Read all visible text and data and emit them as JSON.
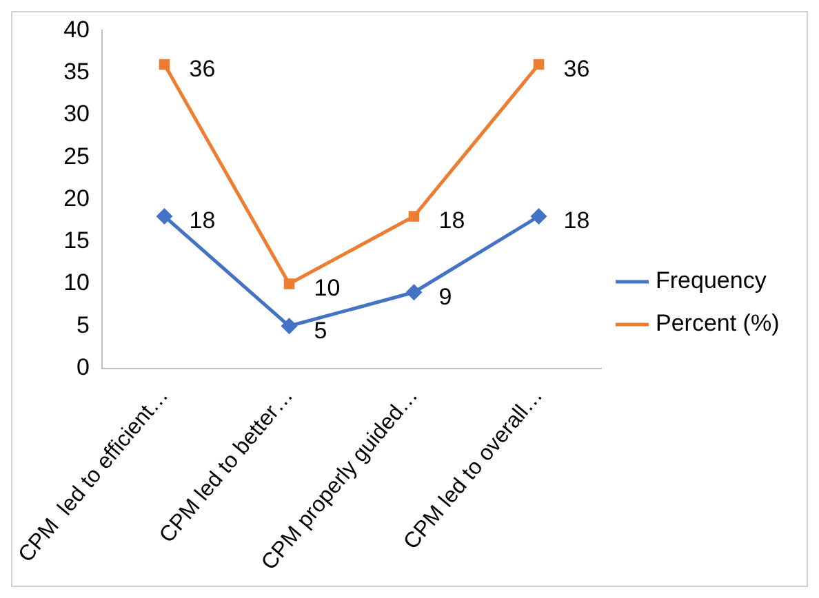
{
  "chart_data": {
    "type": "line",
    "categories": [
      "CPM  led to efficient…",
      "CPM led to better…",
      "CPM properly guided…",
      "CPM led to overall…"
    ],
    "series": [
      {
        "name": "Frequency",
        "color": "#4472c4",
        "values": [
          18,
          5,
          9,
          18
        ],
        "marker": "diamond"
      },
      {
        "name": "Percent (%)",
        "color": "#ed7d31",
        "values": [
          36,
          10,
          18,
          36
        ],
        "marker": "square"
      }
    ],
    "ylim": [
      0,
      40
    ],
    "yticks": [
      0,
      5,
      10,
      15,
      20,
      25,
      30,
      35,
      40
    ],
    "grid": false,
    "legend": "right",
    "data_labels": true,
    "line_style": "solid"
  }
}
